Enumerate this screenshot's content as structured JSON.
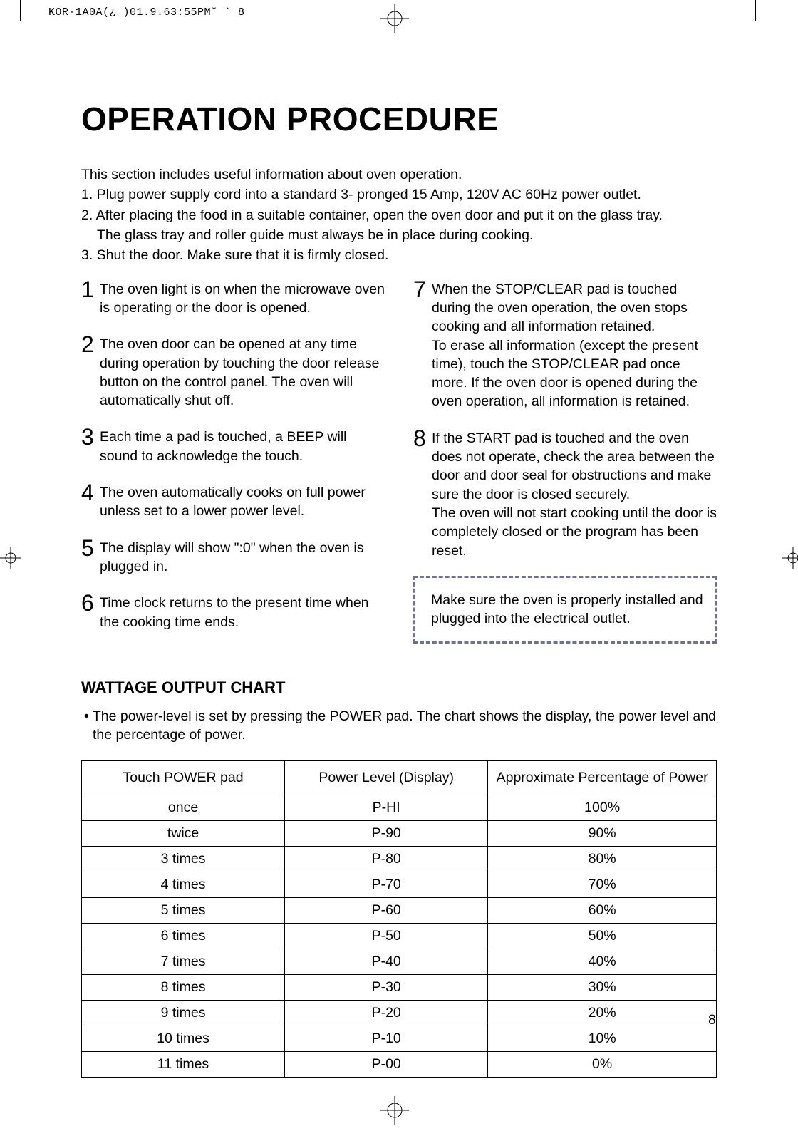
{
  "header_meta": "KOR-1A0A(¿ )01.9.63:55PM˘  `  8",
  "page_number": "8",
  "title": "OPERATION PROCEDURE",
  "intro": {
    "line0": "This section includes useful information about oven operation.",
    "line1": "1. Plug power supply cord into a standard 3- pronged 15 Amp, 120V AC 60Hz power outlet.",
    "line2": "2. After placing the food in a suitable container, open the oven door and put it on the glass tray.",
    "line2b": "The glass tray and roller guide must always be in place during cooking.",
    "line3": "3. Shut the door. Make sure that it is firmly closed."
  },
  "left_items": [
    {
      "n": "1",
      "t": "The oven light is on when the microwave oven is operating or the door is opened."
    },
    {
      "n": "2",
      "t": "The oven door can be opened at any time during operation by touching the door release button on the control panel. The oven will automatically shut off."
    },
    {
      "n": "3",
      "t": "Each time a pad is touched, a BEEP will sound to acknowledge the touch."
    },
    {
      "n": "4",
      "t": "The oven automatically cooks on full power unless set to a lower power level."
    },
    {
      "n": "5",
      "t": "The display will show \":0\" when the oven is plugged in."
    },
    {
      "n": "6",
      "t": "Time clock returns to the present time when the cooking time ends."
    }
  ],
  "right_items": [
    {
      "n": "7",
      "t": "When the STOP/CLEAR pad is touched during the oven operation, the oven stops cooking and all information retained.\nTo erase all information (except the present time), touch the STOP/CLEAR pad once more. If the oven door is opened during the oven operation, all information is retained."
    },
    {
      "n": "8",
      "t": "If the START pad is touched and the oven does not operate, check the area between the door and door seal for obstructions and make sure the door is closed securely.\nThe oven will not start cooking until the door is completely closed or the program has been reset."
    }
  ],
  "note": "Make sure the oven is properly installed and plugged into the electrical outlet.",
  "chart": {
    "heading": "WATTAGE OUTPUT CHART",
    "intro": "• The power-level is set by pressing the POWER pad. The chart shows the display, the power level and the percentage of power.",
    "columns": [
      "Touch POWER pad",
      "Power Level (Display)",
      "Approximate Percentage of Power"
    ],
    "col_widths": [
      "32%",
      "32%",
      "36%"
    ],
    "rows": [
      [
        "once",
        "P-HI",
        "100%"
      ],
      [
        "twice",
        "P-90",
        "90%"
      ],
      [
        "3 times",
        "P-80",
        "80%"
      ],
      [
        "4 times",
        "P-70",
        "70%"
      ],
      [
        "5 times",
        "P-60",
        "60%"
      ],
      [
        "6 times",
        "P-50",
        "50%"
      ],
      [
        "7 times",
        "P-40",
        "40%"
      ],
      [
        "8 times",
        "P-30",
        "30%"
      ],
      [
        "9 times",
        "P-20",
        "20%"
      ],
      [
        "10 times",
        "P-10",
        "10%"
      ],
      [
        "11 times",
        "P-00",
        "0%"
      ]
    ]
  },
  "colors": {
    "note_border": "#6f6f9a",
    "text": "#000000",
    "bg": "#ffffff"
  }
}
